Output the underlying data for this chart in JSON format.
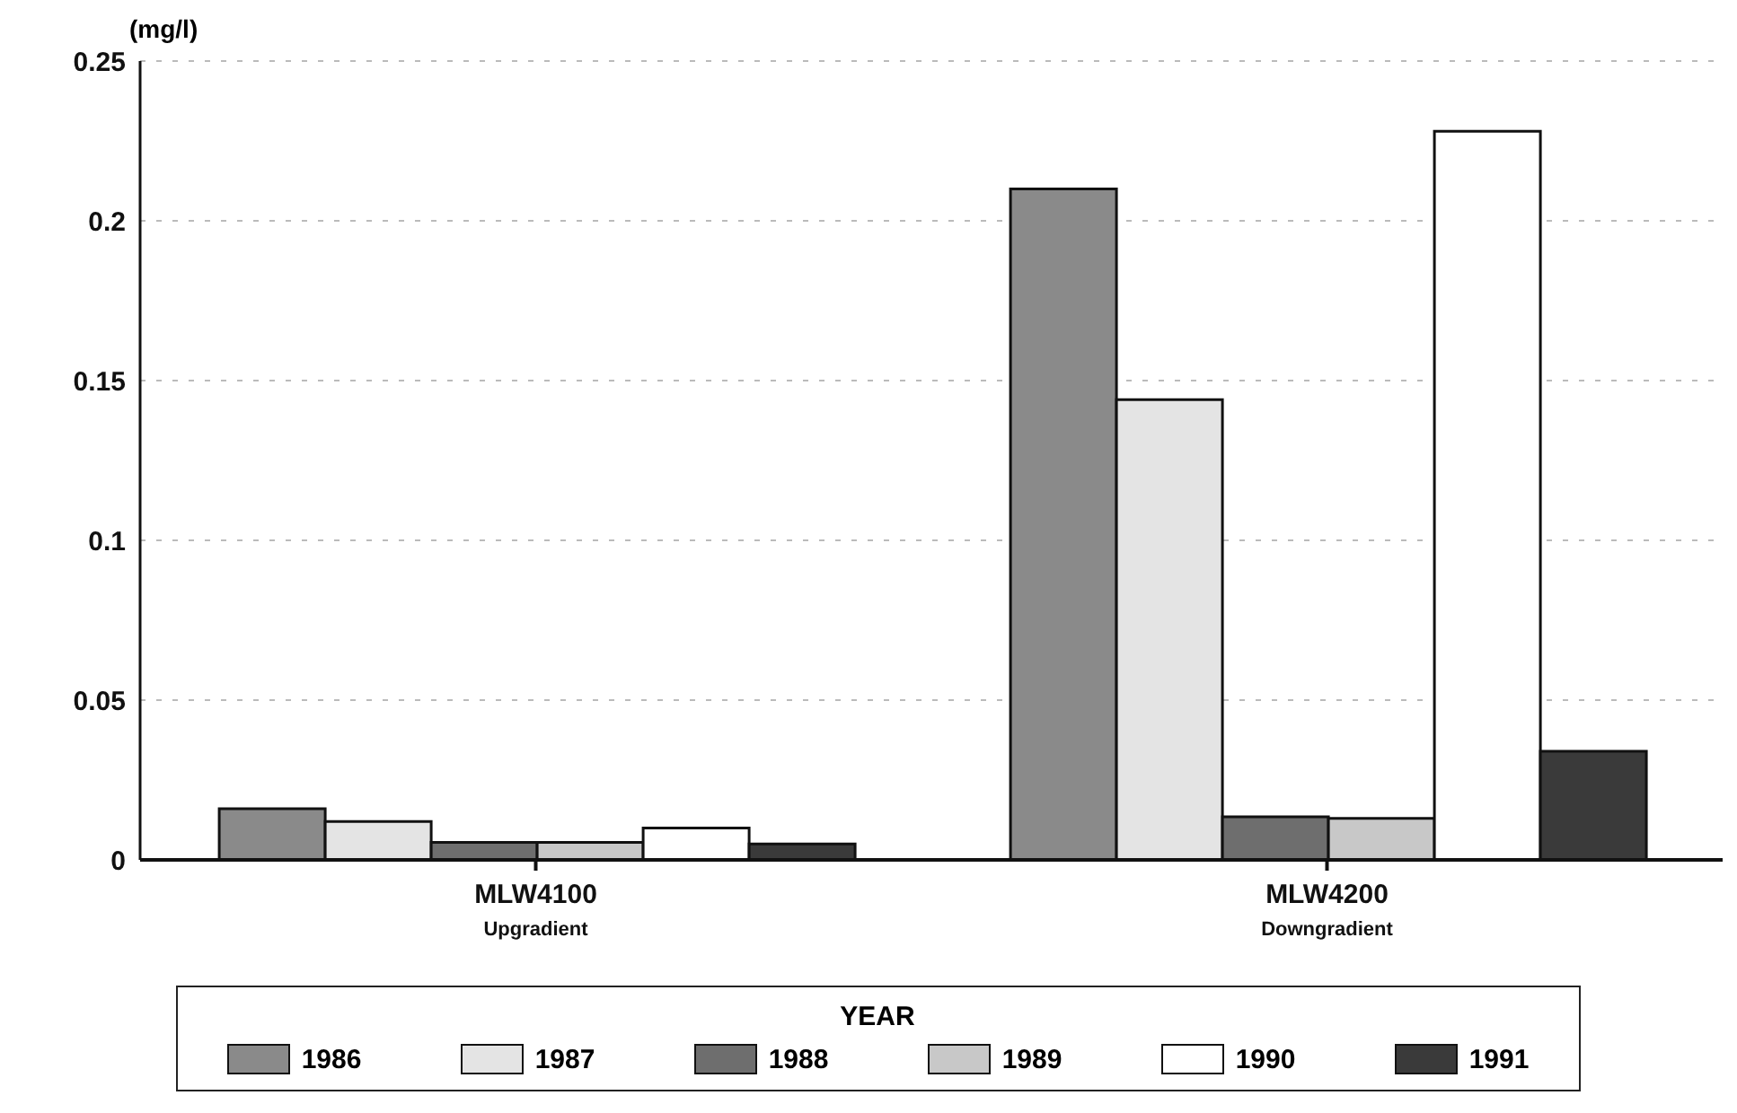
{
  "chart_data": {
    "type": "bar",
    "ylabel": "(mg/l)",
    "legend_title": "YEAR",
    "categories": [
      "MLW4100\nUpgradient",
      "MLW4200\nDowngradient"
    ],
    "series": [
      {
        "name": "1986",
        "color": "#8a8a8a",
        "values": [
          0.016,
          0.21
        ]
      },
      {
        "name": "1987",
        "color": "#e4e4e4",
        "values": [
          0.012,
          0.144
        ]
      },
      {
        "name": "1988",
        "color": "#6e6e6e",
        "values": [
          0.0055,
          0.0135
        ]
      },
      {
        "name": "1989",
        "color": "#c8c8c8",
        "values": [
          0.0055,
          0.013
        ]
      },
      {
        "name": "1990",
        "color": "#ffffff",
        "values": [
          0.01,
          0.228
        ]
      },
      {
        "name": "1991",
        "color": "#3a3a3a",
        "values": [
          0.005,
          0.034
        ]
      }
    ],
    "ylim": [
      0,
      0.25
    ],
    "yticks": [
      0,
      0.05,
      0.1,
      0.15,
      0.2,
      0.25
    ],
    "grid": "y",
    "legend": "bottom"
  }
}
